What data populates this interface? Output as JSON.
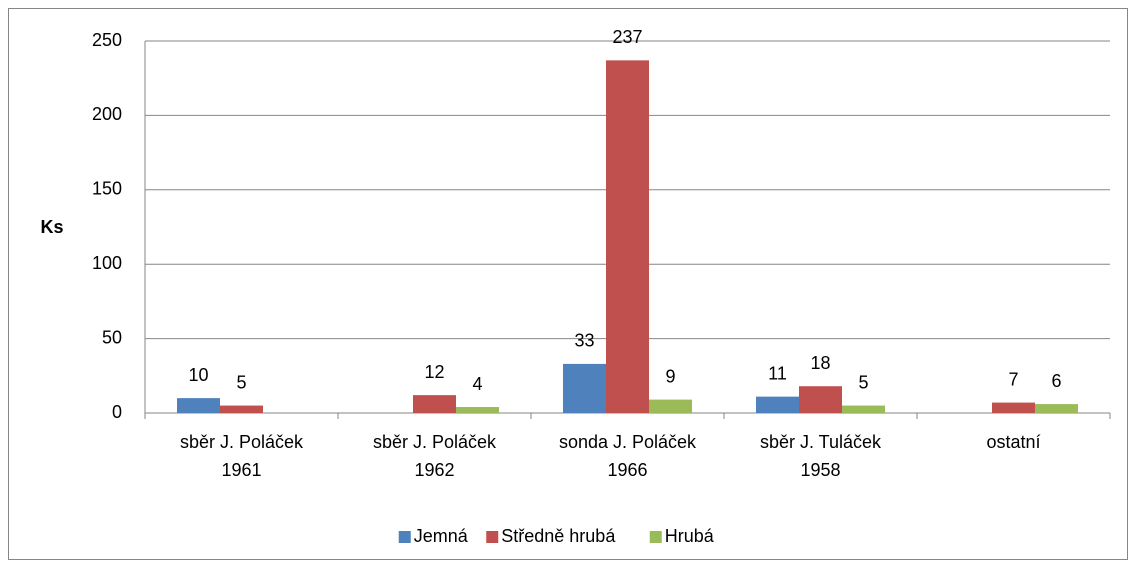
{
  "chart_data": {
    "type": "bar",
    "y_label": "Ks",
    "categories": [
      "sběr J. Poláček 1961",
      "sběr J. Poláček 1962",
      "sonda J. Poláček 1966",
      "sběr J. Tuláček 1958",
      "ostatní"
    ],
    "series": [
      {
        "name": "Jemná",
        "color": "#4f81bd",
        "values": [
          10,
          null,
          33,
          11,
          null
        ]
      },
      {
        "name": "Středně hrubá",
        "color": "#c0504d",
        "values": [
          5,
          12,
          237,
          18,
          7
        ]
      },
      {
        "name": "Hrubá",
        "color": "#9bbb59",
        "values": [
          null,
          4,
          9,
          5,
          6
        ]
      }
    ],
    "ylim": [
      0,
      250
    ],
    "yticks": [
      0,
      50,
      100,
      150,
      200,
      250
    ],
    "grid": true,
    "legend": "bottom"
  }
}
